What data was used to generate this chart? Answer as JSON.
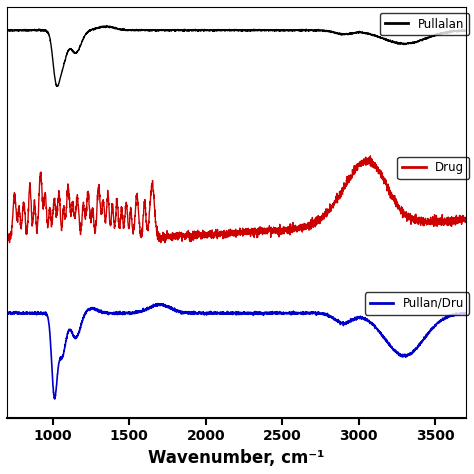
{
  "title": "",
  "xlabel": "Wavenumber, cm⁻¹",
  "xlabel_bold": true,
  "xlim": [
    700,
    3700
  ],
  "xticks": [
    1000,
    1500,
    2000,
    2500,
    3000,
    3500
  ],
  "background_color": "#ffffff",
  "pullulan_color": "#000000",
  "drug_color": "#cc0000",
  "blend_color": "#0000cc",
  "legend_pullulan": "Pullalan",
  "legend_drug": "Drug",
  "legend_blend": "Pullan/Dru"
}
